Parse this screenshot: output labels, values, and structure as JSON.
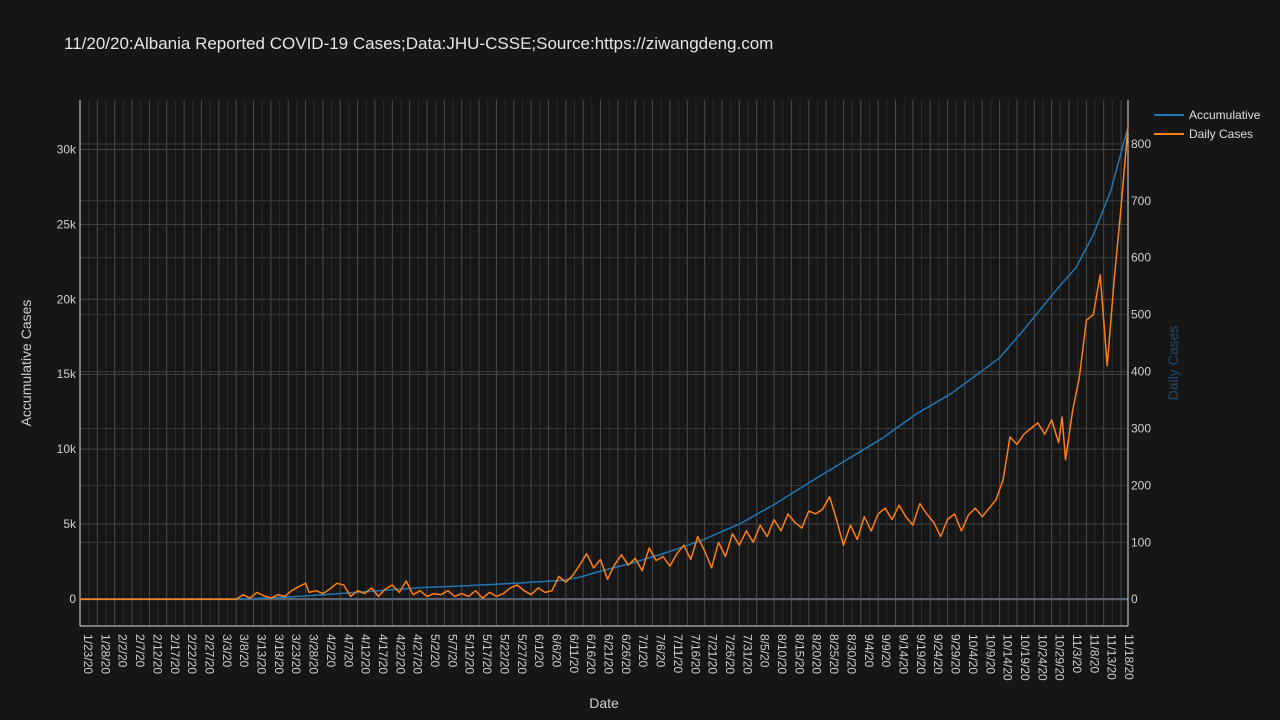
{
  "title": "11/20/20:Albania Reported COVID-19 Cases;Data:JHU-CSSE;Source:https://ziwangdeng.com",
  "colors": {
    "background": "#161616",
    "accumulative": "#1f77b4",
    "daily": "#ff7f0e",
    "y2_title": "#1e4a7a",
    "text": "#cfcfcf"
  },
  "chart_data": {
    "type": "line",
    "title": "11/20/20:Albania Reported COVID-19 Cases;Data:JHU-CSSE;Source:https://ziwangdeng.com",
    "xlabel": "Date",
    "ylabel": "Accumulative Cases",
    "y2label": "Daily Cases",
    "x_range": [
      "2020-01-23",
      "2020-11-20"
    ],
    "ylim": [
      -1800,
      33300
    ],
    "y2lim": [
      -47,
      877
    ],
    "grid": true,
    "legend_position": "top-right",
    "x_tick_labels": [
      "1/23/20",
      "1/28/20",
      "2/2/20",
      "2/7/20",
      "2/12/20",
      "2/17/20",
      "2/22/20",
      "2/27/20",
      "3/3/20",
      "3/8/20",
      "3/13/20",
      "3/18/20",
      "3/23/20",
      "3/28/20",
      "4/2/20",
      "4/7/20",
      "4/12/20",
      "4/17/20",
      "4/22/20",
      "4/27/20",
      "5/2/20",
      "5/7/20",
      "5/12/20",
      "5/17/20",
      "5/22/20",
      "5/27/20",
      "6/1/20",
      "6/6/20",
      "6/11/20",
      "6/16/20",
      "6/21/20",
      "6/26/20",
      "7/1/20",
      "7/6/20",
      "7/11/20",
      "7/16/20",
      "7/21/20",
      "7/26/20",
      "7/31/20",
      "8/5/20",
      "8/10/20",
      "8/15/20",
      "8/20/20",
      "8/25/20",
      "8/30/20",
      "9/4/20",
      "9/9/20",
      "9/14/20",
      "9/19/20",
      "9/24/20",
      "9/29/20",
      "10/4/20",
      "10/9/20",
      "10/14/20",
      "10/19/20",
      "10/24/20",
      "10/29/20",
      "11/3/20",
      "11/8/20",
      "11/13/20",
      "11/18/20"
    ],
    "y_ticks": [
      0,
      5000,
      10000,
      15000,
      20000,
      25000,
      30000
    ],
    "y_tick_labels": [
      "0",
      "5k",
      "10k",
      "15k",
      "20k",
      "25k",
      "30k"
    ],
    "y2_ticks": [
      0,
      100,
      200,
      300,
      400,
      500,
      600,
      700,
      800
    ],
    "y2_tick_labels": [
      "0",
      "100",
      "200",
      "300",
      "400",
      "500",
      "600",
      "700",
      "800"
    ],
    "series": [
      {
        "name": "Accumulative",
        "axis": "y",
        "points": [
          [
            "2020-01-23",
            0
          ],
          [
            "2020-03-08",
            0
          ],
          [
            "2020-03-15",
            50
          ],
          [
            "2020-03-22",
            120
          ],
          [
            "2020-03-31",
            250
          ],
          [
            "2020-04-10",
            420
          ],
          [
            "2020-04-20",
            580
          ],
          [
            "2020-04-30",
            760
          ],
          [
            "2020-05-10",
            850
          ],
          [
            "2020-05-20",
            960
          ],
          [
            "2020-05-31",
            1100
          ],
          [
            "2020-06-10",
            1250
          ],
          [
            "2020-06-15",
            1450
          ],
          [
            "2020-06-20",
            1800
          ],
          [
            "2020-06-30",
            2400
          ],
          [
            "2020-07-10",
            3100
          ],
          [
            "2020-07-20",
            3900
          ],
          [
            "2020-07-31",
            5000
          ],
          [
            "2020-08-10",
            6300
          ],
          [
            "2020-08-20",
            7750
          ],
          [
            "2020-08-31",
            9300
          ],
          [
            "2020-09-10",
            10700
          ],
          [
            "2020-09-20",
            12350
          ],
          [
            "2020-09-30",
            13700
          ],
          [
            "2020-10-10",
            15400
          ],
          [
            "2020-10-14",
            16100
          ],
          [
            "2020-10-20",
            17700
          ],
          [
            "2020-10-31",
            20800
          ],
          [
            "2020-11-05",
            22100
          ],
          [
            "2020-11-10",
            24300
          ],
          [
            "2020-11-15",
            27200
          ],
          [
            "2020-11-20",
            31500
          ]
        ]
      },
      {
        "name": "Daily Cases",
        "axis": "y2",
        "points": [
          [
            "2020-01-23",
            0
          ],
          [
            "2020-03-08",
            0
          ],
          [
            "2020-03-10",
            8
          ],
          [
            "2020-03-12",
            2
          ],
          [
            "2020-03-14",
            12
          ],
          [
            "2020-03-16",
            6
          ],
          [
            "2020-03-18",
            2
          ],
          [
            "2020-03-20",
            8
          ],
          [
            "2020-03-22",
            5
          ],
          [
            "2020-03-24",
            15
          ],
          [
            "2020-03-26",
            22
          ],
          [
            "2020-03-28",
            28
          ],
          [
            "2020-03-29",
            12
          ],
          [
            "2020-03-31",
            15
          ],
          [
            "2020-04-02",
            10
          ],
          [
            "2020-04-04",
            18
          ],
          [
            "2020-04-06",
            28
          ],
          [
            "2020-04-08",
            25
          ],
          [
            "2020-04-10",
            5
          ],
          [
            "2020-04-12",
            15
          ],
          [
            "2020-04-14",
            10
          ],
          [
            "2020-04-16",
            20
          ],
          [
            "2020-04-18",
            5
          ],
          [
            "2020-04-20",
            18
          ],
          [
            "2020-04-22",
            25
          ],
          [
            "2020-04-24",
            12
          ],
          [
            "2020-04-26",
            32
          ],
          [
            "2020-04-28",
            8
          ],
          [
            "2020-04-30",
            15
          ],
          [
            "2020-05-02",
            5
          ],
          [
            "2020-05-04",
            10
          ],
          [
            "2020-05-06",
            8
          ],
          [
            "2020-05-08",
            15
          ],
          [
            "2020-05-10",
            5
          ],
          [
            "2020-05-12",
            10
          ],
          [
            "2020-05-14",
            5
          ],
          [
            "2020-05-16",
            15
          ],
          [
            "2020-05-18",
            2
          ],
          [
            "2020-05-20",
            12
          ],
          [
            "2020-05-22",
            5
          ],
          [
            "2020-05-24",
            10
          ],
          [
            "2020-05-26",
            20
          ],
          [
            "2020-05-28",
            25
          ],
          [
            "2020-05-30",
            15
          ],
          [
            "2020-06-01",
            8
          ],
          [
            "2020-06-03",
            20
          ],
          [
            "2020-06-05",
            12
          ],
          [
            "2020-06-07",
            15
          ],
          [
            "2020-06-09",
            40
          ],
          [
            "2020-06-11",
            30
          ],
          [
            "2020-06-13",
            42
          ],
          [
            "2020-06-15",
            60
          ],
          [
            "2020-06-17",
            80
          ],
          [
            "2020-06-19",
            55
          ],
          [
            "2020-06-21",
            70
          ],
          [
            "2020-06-23",
            35
          ],
          [
            "2020-06-25",
            60
          ],
          [
            "2020-06-27",
            78
          ],
          [
            "2020-06-29",
            60
          ],
          [
            "2020-07-01",
            72
          ],
          [
            "2020-07-03",
            50
          ],
          [
            "2020-07-05",
            90
          ],
          [
            "2020-07-07",
            68
          ],
          [
            "2020-07-09",
            75
          ],
          [
            "2020-07-11",
            58
          ],
          [
            "2020-07-13",
            80
          ],
          [
            "2020-07-15",
            95
          ],
          [
            "2020-07-17",
            70
          ],
          [
            "2020-07-19",
            110
          ],
          [
            "2020-07-21",
            85
          ],
          [
            "2020-07-23",
            55
          ],
          [
            "2020-07-25",
            100
          ],
          [
            "2020-07-27",
            75
          ],
          [
            "2020-07-29",
            115
          ],
          [
            "2020-07-31",
            95
          ],
          [
            "2020-08-02",
            120
          ],
          [
            "2020-08-04",
            100
          ],
          [
            "2020-08-06",
            130
          ],
          [
            "2020-08-08",
            110
          ],
          [
            "2020-08-10",
            140
          ],
          [
            "2020-08-12",
            120
          ],
          [
            "2020-08-14",
            150
          ],
          [
            "2020-08-16",
            135
          ],
          [
            "2020-08-18",
            125
          ],
          [
            "2020-08-20",
            155
          ],
          [
            "2020-08-22",
            150
          ],
          [
            "2020-08-24",
            158
          ],
          [
            "2020-08-26",
            180
          ],
          [
            "2020-08-28",
            140
          ],
          [
            "2020-08-30",
            95
          ],
          [
            "2020-09-01",
            130
          ],
          [
            "2020-09-03",
            105
          ],
          [
            "2020-09-05",
            145
          ],
          [
            "2020-09-07",
            120
          ],
          [
            "2020-09-09",
            150
          ],
          [
            "2020-09-11",
            160
          ],
          [
            "2020-09-13",
            140
          ],
          [
            "2020-09-15",
            165
          ],
          [
            "2020-09-17",
            145
          ],
          [
            "2020-09-19",
            130
          ],
          [
            "2020-09-21",
            168
          ],
          [
            "2020-09-23",
            150
          ],
          [
            "2020-09-25",
            135
          ],
          [
            "2020-09-27",
            110
          ],
          [
            "2020-09-29",
            140
          ],
          [
            "2020-10-01",
            150
          ],
          [
            "2020-10-03",
            120
          ],
          [
            "2020-10-05",
            148
          ],
          [
            "2020-10-07",
            160
          ],
          [
            "2020-10-09",
            145
          ],
          [
            "2020-10-11",
            160
          ],
          [
            "2020-10-13",
            175
          ],
          [
            "2020-10-15",
            210
          ],
          [
            "2020-10-17",
            285
          ],
          [
            "2020-10-19",
            272
          ],
          [
            "2020-10-21",
            290
          ],
          [
            "2020-10-23",
            300
          ],
          [
            "2020-10-25",
            310
          ],
          [
            "2020-10-27",
            290
          ],
          [
            "2020-10-29",
            315
          ],
          [
            "2020-10-31",
            275
          ],
          [
            "2020-11-01",
            320
          ],
          [
            "2020-11-02",
            245
          ],
          [
            "2020-11-04",
            330
          ],
          [
            "2020-11-06",
            390
          ],
          [
            "2020-11-08",
            490
          ],
          [
            "2020-11-10",
            500
          ],
          [
            "2020-11-12",
            570
          ],
          [
            "2020-11-14",
            410
          ],
          [
            "2020-11-16",
            560
          ],
          [
            "2020-11-18",
            690
          ],
          [
            "2020-11-20",
            830
          ]
        ]
      }
    ]
  }
}
